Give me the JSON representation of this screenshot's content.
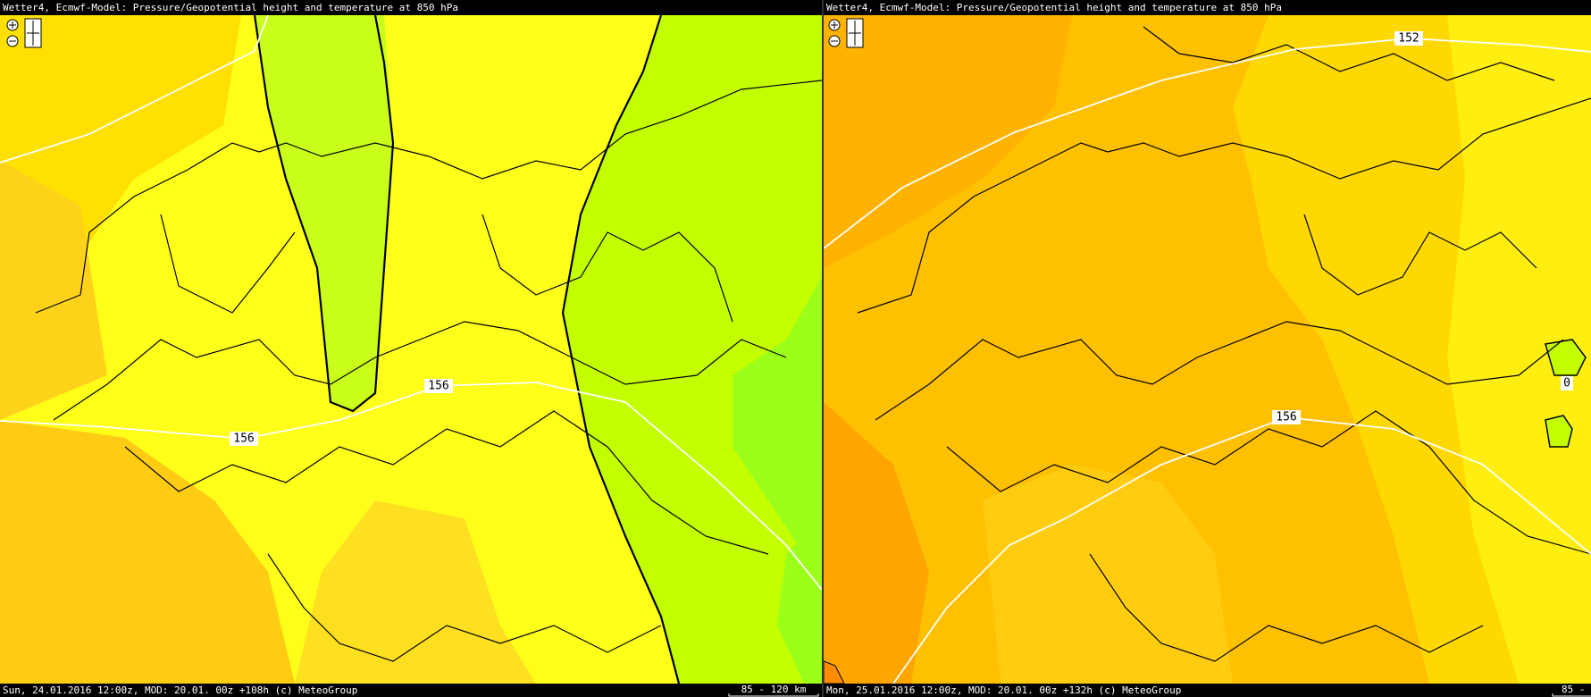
{
  "panels": [
    {
      "header": "Wetter4, Ecmwf-Model: Pressure/Geopotential height and temperature at 850 hPa",
      "contour_labels": [
        "156",
        "156"
      ],
      "footer": "Sun, 24.01.2016 12:00z, MOD: 20.01. 00z +108h (c) MeteoGroup",
      "scale_label": "85 - 120 km"
    },
    {
      "header": "Wetter4, Ecmwf-Model: Pressure/Geopotential height and temperature at 850 hPa",
      "contour_labels": [
        "152",
        "156",
        "0"
      ],
      "footer": "Mon, 25.01.2016 12:00z, MOD: 20.01. 00z +132h (c) MeteoGroup",
      "scale_label": "85 -"
    }
  ]
}
